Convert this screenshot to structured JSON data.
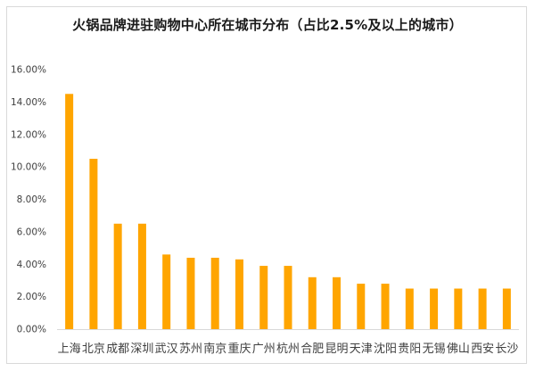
{
  "chart_data": {
    "type": "bar",
    "title": "火锅品牌进驻购物中心所在城市分布（占比2.5%及以上的城市）",
    "xlabel": "",
    "ylabel": "",
    "ylim": [
      0,
      16
    ],
    "yticks": [
      "0.00%",
      "2.00%",
      "4.00%",
      "6.00%",
      "8.00%",
      "10.00%",
      "12.00%",
      "14.00%",
      "16.00%"
    ],
    "categories": [
      "上海",
      "北京",
      "成都",
      "深圳",
      "武汉",
      "苏州",
      "南京",
      "重庆",
      "广州",
      "杭州",
      "合肥",
      "昆明",
      "天津",
      "沈阳",
      "贵阳",
      "无锡",
      "佛山",
      "西安",
      "长沙"
    ],
    "values": [
      14.5,
      10.5,
      6.5,
      6.5,
      4.6,
      4.4,
      4.4,
      4.3,
      3.9,
      3.9,
      3.2,
      3.2,
      2.8,
      2.8,
      2.5,
      2.5,
      2.5,
      2.5,
      2.5
    ],
    "grid": false,
    "legend": "none",
    "bar_color": "#ffa500",
    "axis_color": "#d9d9d9"
  }
}
